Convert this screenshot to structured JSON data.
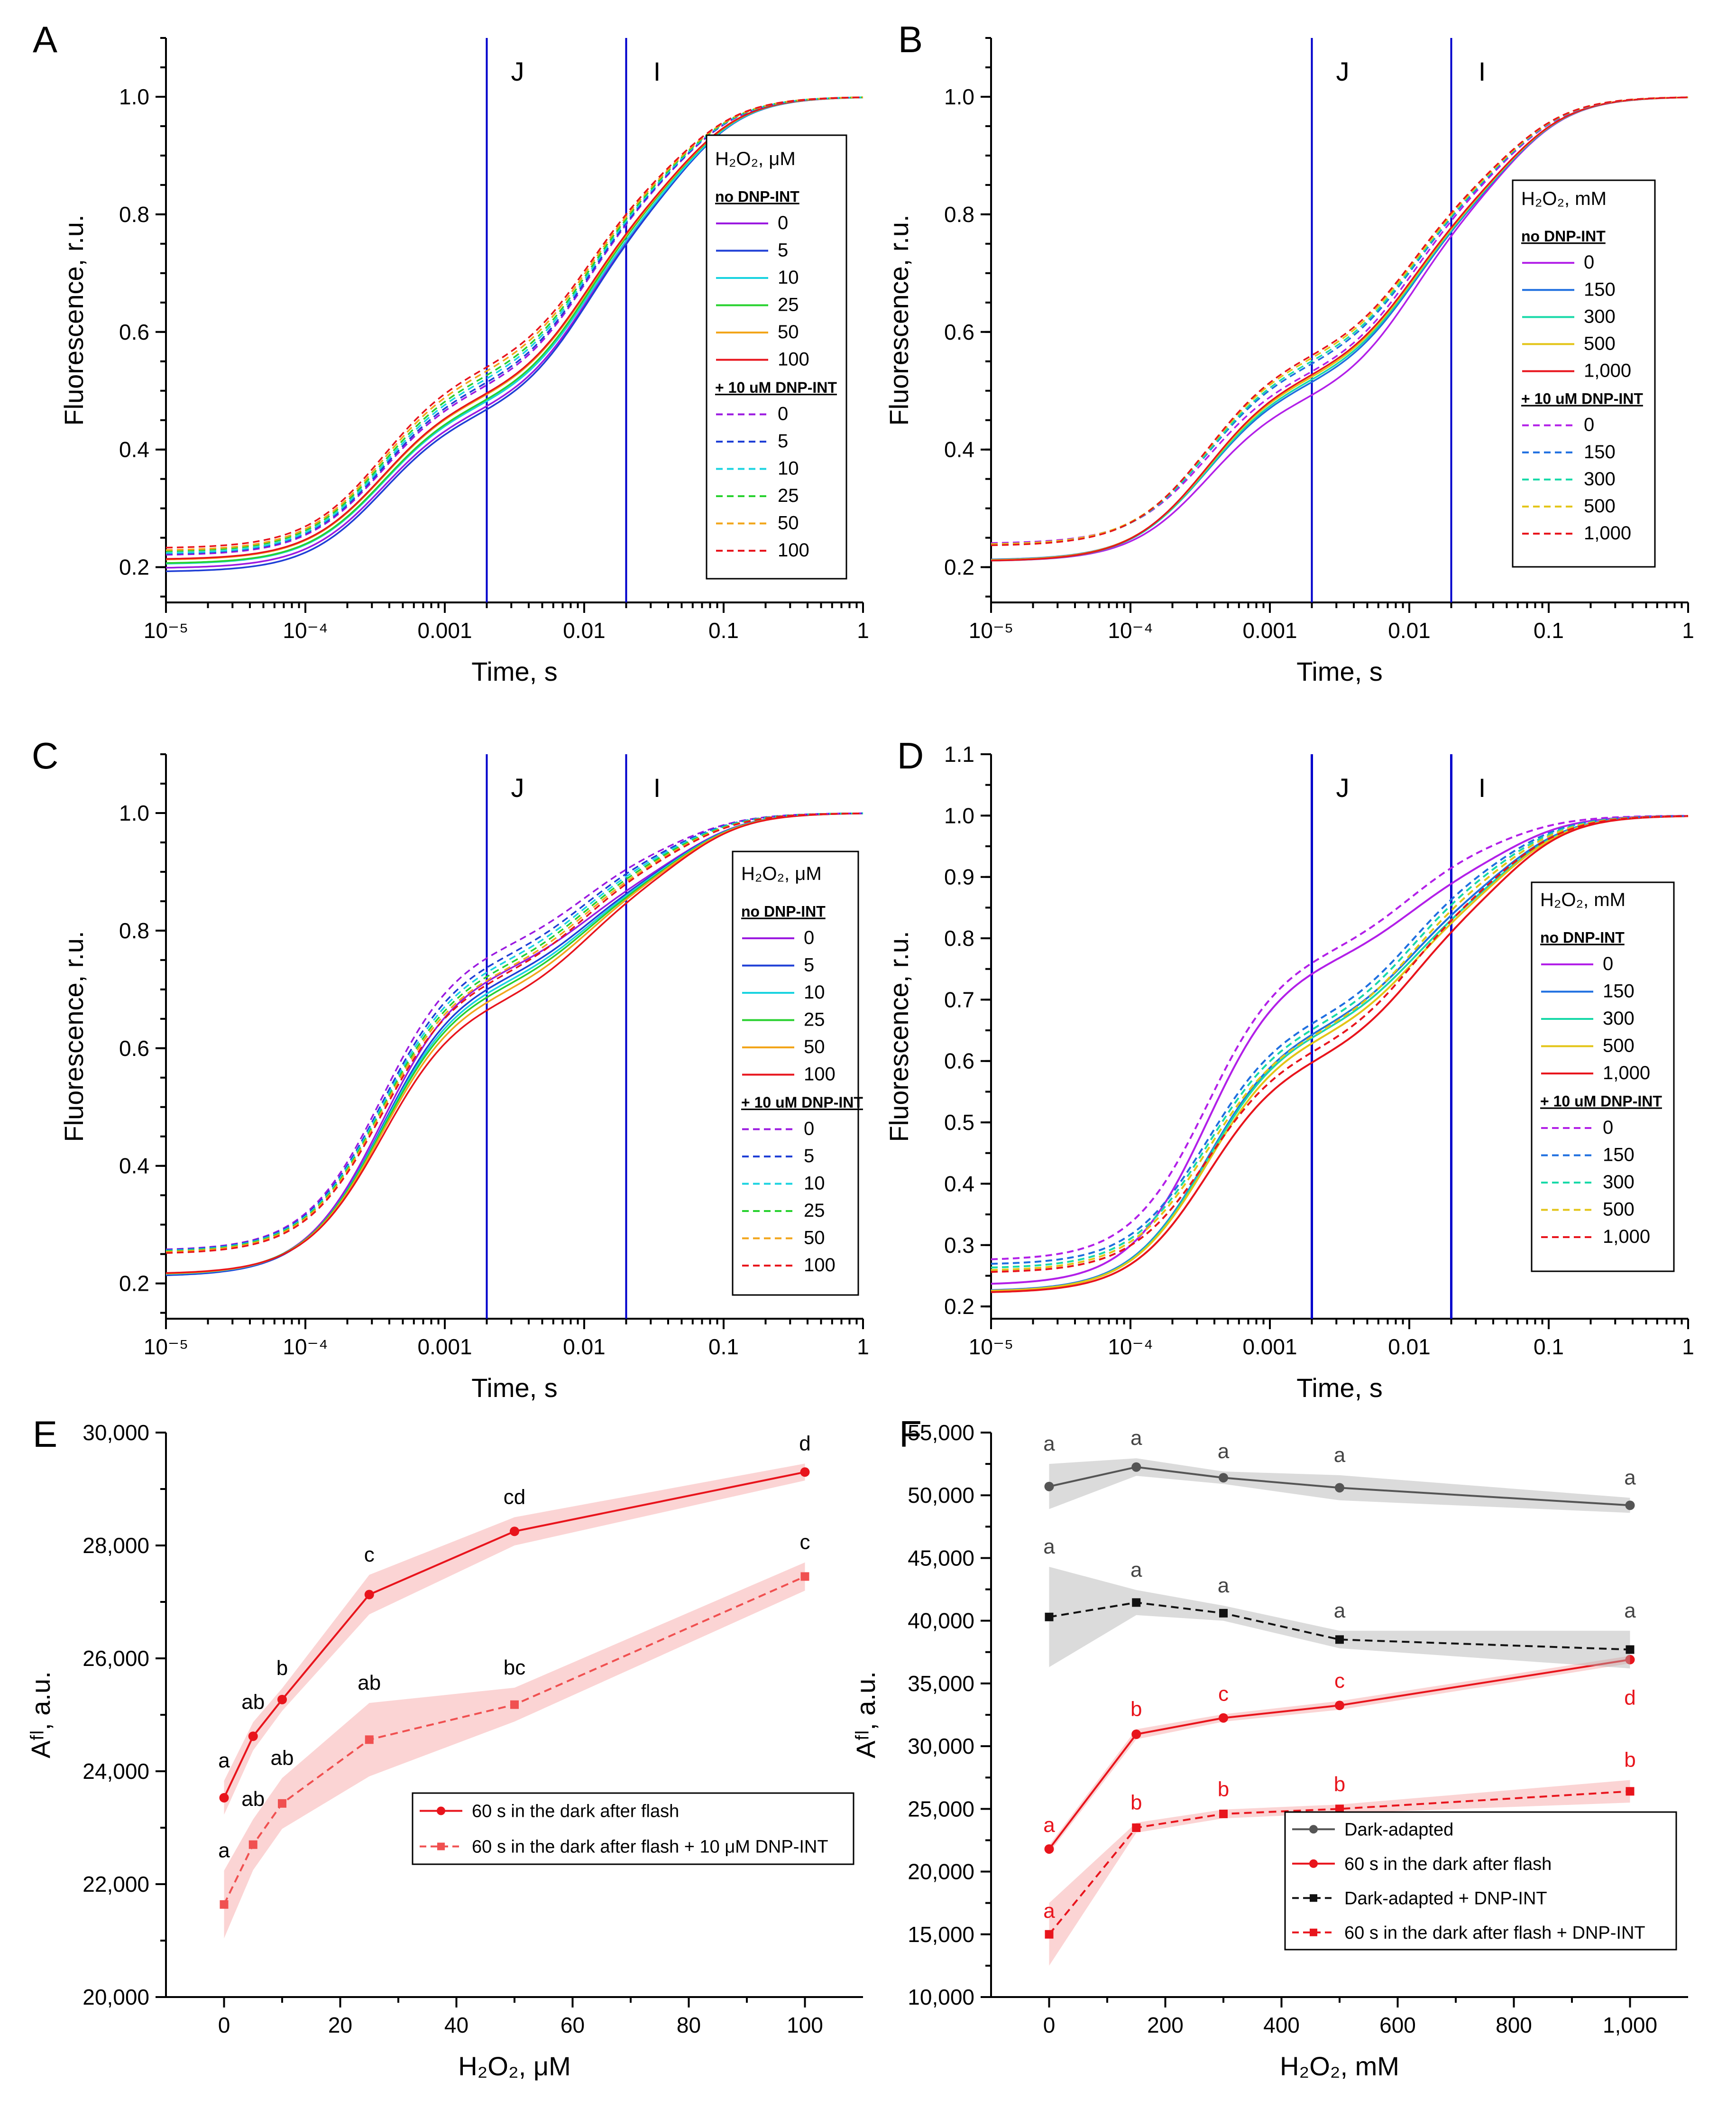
{
  "figure": {
    "panels": [
      "A",
      "B",
      "C",
      "D",
      "E",
      "F"
    ]
  },
  "ojip": {
    "ylabel": "Fluorescence, r.u.",
    "xlabel": "Time, s",
    "xtick_labels": [
      "10⁻⁵",
      "10⁻⁴",
      "0.001",
      "0.01",
      "0.1",
      "1"
    ],
    "xtick_values": [
      1e-05,
      0.0001,
      0.001,
      0.01,
      0.1,
      1
    ],
    "phase_markers": [
      {
        "label": "J",
        "t": 0.002
      },
      {
        "label": "I",
        "t": 0.02
      }
    ],
    "marker_color": "#0000cc",
    "legend_group_solid": "no DNP-INT",
    "legend_group_dashed": "+ 10 uM DNP-INT",
    "palette": [
      "#9b19e0",
      "#1f3fd6",
      "#19d3e0",
      "#27d12e",
      "#f2a51a",
      "#e8141c"
    ],
    "palette_mM": [
      "#b21fe8",
      "#1e6fe0",
      "#17d9a8",
      "#e3c416",
      "#e8141c"
    ]
  },
  "chart_data": [
    {
      "panel": "A",
      "type": "line",
      "xscale": "log",
      "xlim": [
        1e-05,
        1
      ],
      "ylim": [
        0.14,
        1.1
      ],
      "yticks": [
        "0.2",
        "0.4",
        "0.6",
        "0.8",
        "1.0"
      ],
      "legend_title": "H₂O₂, μM",
      "levels": [
        "0",
        "5",
        "10",
        "25",
        "50",
        "100"
      ],
      "marker_style": "thin",
      "solid": {
        "F0": [
          0.198,
          0.192,
          0.205,
          0.206,
          0.212,
          0.213
        ],
        "FJ": [
          0.468,
          0.462,
          0.477,
          0.48,
          0.489,
          0.491
        ],
        "FI": [
          0.81,
          0.808,
          0.812,
          0.82,
          0.822,
          0.825
        ]
      },
      "dashed": {
        "F0": [
          0.22,
          0.222,
          0.223,
          0.226,
          0.228,
          0.232
        ],
        "FJ": [
          0.505,
          0.51,
          0.517,
          0.523,
          0.531,
          0.538
        ],
        "FI": [
          0.845,
          0.847,
          0.85,
          0.853,
          0.856,
          0.86
        ]
      }
    },
    {
      "panel": "B",
      "type": "line",
      "xscale": "log",
      "xlim": [
        1e-05,
        1
      ],
      "ylim": [
        0.14,
        1.1
      ],
      "yticks": [
        "0.2",
        "0.4",
        "0.6",
        "0.8",
        "1.0"
      ],
      "legend_title": "H₂O₂, mM",
      "levels": [
        "0",
        "150",
        "300",
        "500",
        "1,000"
      ],
      "marker_style": "thin",
      "solid": {
        "F0": [
          0.21,
          0.212,
          0.21,
          0.211,
          0.21
        ],
        "FJ": [
          0.488,
          0.513,
          0.518,
          0.523,
          0.527
        ],
        "FI": [
          0.82,
          0.822,
          0.824,
          0.826,
          0.828
        ]
      },
      "dashed": {
        "F0": [
          0.24,
          0.238,
          0.237,
          0.238,
          0.236
        ],
        "FJ": [
          0.53,
          0.545,
          0.55,
          0.556,
          0.561
        ],
        "FI": [
          0.845,
          0.848,
          0.85,
          0.852,
          0.855
        ]
      }
    },
    {
      "panel": "C",
      "type": "line",
      "xscale": "log",
      "xlim": [
        1e-05,
        1
      ],
      "ylim": [
        0.14,
        1.1
      ],
      "yticks": [
        "0.2",
        "0.4",
        "0.6",
        "0.8",
        "1.0"
      ],
      "legend_title": "H₂O₂, μM",
      "levels": [
        "0",
        "5",
        "10",
        "25",
        "50",
        "100"
      ],
      "marker_style": "thin",
      "solid": {
        "F0": [
          0.213,
          0.212,
          0.214,
          0.215,
          0.215,
          0.216
        ],
        "FJ": [
          0.735,
          0.72,
          0.712,
          0.705,
          0.695,
          0.68
        ],
        "FI": [
          0.892,
          0.89,
          0.888,
          0.886,
          0.884,
          0.88
        ]
      },
      "dashed": {
        "F0": [
          0.256,
          0.255,
          0.254,
          0.253,
          0.252,
          0.25
        ],
        "FJ": [
          0.775,
          0.757,
          0.748,
          0.74,
          0.733,
          0.725
        ],
        "FI": [
          0.935,
          0.93,
          0.926,
          0.922,
          0.918,
          0.915
        ]
      }
    },
    {
      "panel": "D",
      "type": "line",
      "xscale": "log",
      "xlim": [
        1e-05,
        1
      ],
      "ylim": [
        0.18,
        1.1
      ],
      "yticks": [
        "0.2",
        "0.3",
        "0.4",
        "0.5",
        "0.6",
        "0.7",
        "0.8",
        "0.9",
        "1.0",
        "1.1"
      ],
      "legend_title": "H₂O₂, mM",
      "levels": [
        "0",
        "150",
        "300",
        "500",
        "1,000"
      ],
      "marker_style": "thick",
      "solid": {
        "F0": [
          0.235,
          0.225,
          0.224,
          0.224,
          0.222
        ],
        "FJ": [
          0.765,
          0.655,
          0.65,
          0.64,
          0.605
        ],
        "FI": [
          0.915,
          0.875,
          0.865,
          0.86,
          0.85
        ]
      },
      "dashed": {
        "F0": [
          0.275,
          0.268,
          0.262,
          0.258,
          0.255
        ],
        "FJ": [
          0.78,
          0.67,
          0.66,
          0.648,
          0.62
        ],
        "FI": [
          0.95,
          0.91,
          0.9,
          0.89,
          0.875
        ]
      }
    },
    {
      "panel": "E",
      "type": "line",
      "xlabel": "H₂O₂, μM",
      "ylabel": "Aᶠˡ, a.u.",
      "xlim": [
        -10,
        110
      ],
      "ylim": [
        20000,
        30000
      ],
      "xticks": [
        0,
        20,
        40,
        60,
        80,
        100
      ],
      "xtick_labels": [
        "0",
        "20",
        "40",
        "60",
        "80",
        "100"
      ],
      "yticks": [
        20000,
        22000,
        24000,
        26000,
        28000,
        30000
      ],
      "ytick_labels": [
        "20,000",
        "22,000",
        "24,000",
        "26,000",
        "28,000",
        "30,000"
      ],
      "series": [
        {
          "name": "60 s in the dark after flash",
          "style": "solid",
          "marker": "circle",
          "color": "#e8141c",
          "x": [
            0,
            5,
            10,
            25,
            50,
            100
          ],
          "y": [
            23530,
            24620,
            25270,
            27130,
            28250,
            29300
          ],
          "err": [
            300,
            250,
            200,
            350,
            250,
            150
          ],
          "labels": [
            "a",
            "ab",
            "b",
            "c",
            "cd",
            "d"
          ]
        },
        {
          "name": "60 s in the dark after flash + 10 μM DNP-INT",
          "style": "dashed",
          "marker": "square",
          "color": "#f05050",
          "x": [
            0,
            5,
            10,
            25,
            50,
            100
          ],
          "y": [
            21640,
            22700,
            23430,
            24560,
            25180,
            27450
          ],
          "err": [
            600,
            450,
            450,
            650,
            300,
            250
          ],
          "labels": [
            "a",
            "ab",
            "ab",
            "ab",
            "bc",
            "c"
          ]
        }
      ]
    },
    {
      "panel": "F",
      "type": "line",
      "xlabel": "H₂O₂, mM",
      "ylabel": "Aᶠˡ, a.u.",
      "xlim": [
        -100,
        1100
      ],
      "ylim": [
        10000,
        55000
      ],
      "xticks": [
        0,
        200,
        400,
        600,
        800,
        1000
      ],
      "xtick_labels": [
        "0",
        "200",
        "400",
        "600",
        "800",
        "1,000"
      ],
      "yticks": [
        10000,
        15000,
        20000,
        25000,
        30000,
        35000,
        40000,
        45000,
        50000,
        55000
      ],
      "ytick_labels": [
        "10,000",
        "15,000",
        "20,000",
        "25,000",
        "30,000",
        "35,000",
        "40,000",
        "45,000",
        "50,000",
        "55,000"
      ],
      "series": [
        {
          "name": "Dark-adapted",
          "style": "solid",
          "marker": "circle",
          "color": "#555555",
          "x": [
            0,
            150,
            300,
            500,
            1000
          ],
          "y": [
            50700,
            52250,
            51400,
            50600,
            49200
          ],
          "err": [
            1800,
            700,
            500,
            1000,
            600
          ],
          "labels": [
            "a",
            "a",
            "a",
            "a",
            "a"
          ]
        },
        {
          "name": "60 s in the dark after flash",
          "style": "solid",
          "marker": "circle",
          "color": "#e8141c",
          "x": [
            0,
            150,
            300,
            500,
            1000
          ],
          "y": [
            21800,
            30950,
            32250,
            33250,
            36900
          ],
          "err": [
            300,
            400,
            300,
            350,
            300
          ],
          "labels": [
            "a",
            "b",
            "c",
            "c",
            "d"
          ]
        },
        {
          "name": "Dark-adapted + DNP-INT",
          "style": "dashed",
          "marker": "square",
          "color": "#111111",
          "x": [
            0,
            150,
            300,
            500,
            1000
          ],
          "y": [
            40300,
            41450,
            40600,
            38500,
            37700
          ],
          "err": [
            4000,
            1000,
            600,
            700,
            1500
          ],
          "labels": [
            "a",
            "a",
            "a",
            "a",
            "a"
          ]
        },
        {
          "name": "60 s in the dark after flash + DNP-INT",
          "style": "dashed",
          "marker": "square",
          "color": "#e8141c",
          "x": [
            0,
            150,
            300,
            500,
            1000
          ],
          "y": [
            15000,
            23500,
            24600,
            25000,
            26400
          ],
          "err": [
            2500,
            400,
            350,
            350,
            900
          ],
          "labels": [
            "a",
            "b",
            "b",
            "b",
            "b"
          ]
        }
      ]
    }
  ]
}
